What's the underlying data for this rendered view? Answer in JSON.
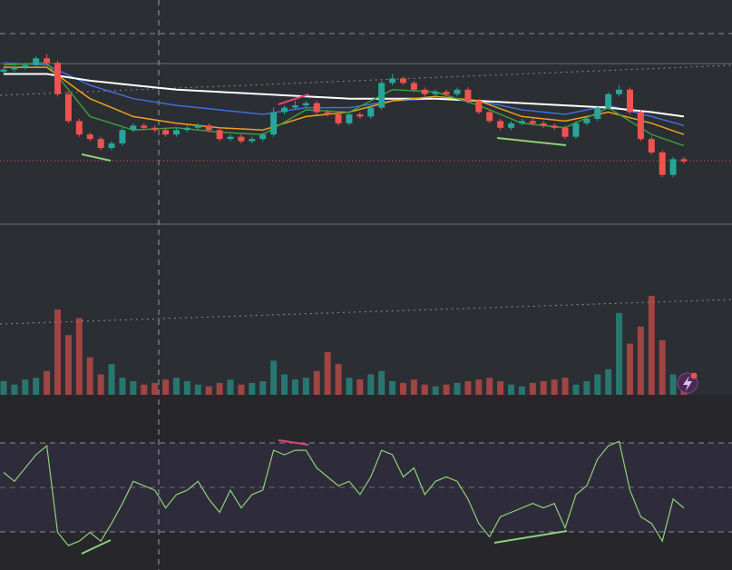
{
  "chart_data": {
    "type": "candlestick",
    "up_color": "#26a69a",
    "down_color": "#ef5350",
    "ylim": [
      0,
      100
    ],
    "open": [
      68,
      69,
      70,
      71,
      74,
      72,
      58,
      46,
      40,
      38,
      34,
      36,
      42,
      44,
      43,
      42,
      40,
      42,
      43,
      44,
      42,
      38,
      39,
      37,
      38,
      40,
      50,
      52,
      53,
      54,
      50,
      49,
      45,
      49,
      48,
      52,
      63,
      65,
      63,
      60,
      58,
      59,
      58,
      60,
      55,
      50,
      46,
      43,
      45,
      46,
      45,
      44,
      43,
      39,
      45,
      47,
      52,
      58,
      60,
      50,
      38,
      32,
      22,
      29
    ],
    "high": [
      70,
      71,
      72,
      75,
      76,
      73,
      59,
      47,
      41,
      39,
      37,
      43,
      45,
      45,
      44,
      43,
      43,
      44,
      45,
      45,
      43,
      40,
      40,
      39,
      41,
      52,
      53,
      55,
      55,
      55,
      51,
      50,
      50,
      50,
      53,
      64,
      67,
      66,
      64,
      61,
      60,
      60,
      61,
      61,
      56,
      51,
      47,
      46,
      47,
      47,
      46,
      45,
      44,
      46,
      48,
      53,
      59,
      62,
      61,
      51,
      39,
      33,
      30,
      30
    ],
    "low": [
      67,
      68,
      69,
      70,
      71,
      57,
      45,
      39,
      37,
      33,
      33,
      35,
      41,
      42,
      41,
      39,
      39,
      41,
      42,
      41,
      37,
      37,
      36,
      36,
      37,
      39,
      49,
      51,
      52,
      49,
      48,
      44,
      44,
      47,
      47,
      51,
      62,
      62,
      59,
      57,
      57,
      57,
      57,
      54,
      49,
      45,
      42,
      42,
      44,
      44,
      43,
      42,
      38,
      38,
      44,
      46,
      51,
      57,
      49,
      37,
      31,
      21,
      21,
      27
    ],
    "close": [
      69,
      70,
      71,
      74,
      72,
      58,
      46,
      40,
      38,
      34,
      36,
      42,
      44,
      43,
      42,
      40,
      42,
      43,
      44,
      42,
      38,
      39,
      37,
      38,
      40,
      50,
      52,
      53,
      54,
      50,
      49,
      45,
      49,
      48,
      52,
      63,
      65,
      63,
      60,
      58,
      59,
      58,
      60,
      55,
      50,
      46,
      43,
      45,
      46,
      45,
      44,
      43,
      39,
      45,
      47,
      52,
      58,
      60,
      50,
      38,
      32,
      22,
      29,
      28
    ],
    "ma_index": [
      0,
      4,
      8,
      12,
      16,
      20,
      24,
      28,
      32,
      36,
      40,
      44,
      48,
      52,
      56,
      60,
      63
    ],
    "moving_averages": [
      {
        "color": "#3f6fd8",
        "values": [
          72,
          71,
          62,
          56,
          53,
          51,
          49,
          52,
          52,
          55,
          56,
          55,
          51,
          49,
          53,
          48,
          44
        ]
      },
      {
        "color": "#ffffff",
        "values": [
          67,
          67,
          64,
          62,
          60,
          59,
          58,
          57,
          56,
          56,
          56,
          55,
          54,
          53,
          52,
          50,
          48
        ]
      },
      {
        "color": "#f0a020",
        "values": [
          70,
          70,
          56,
          48,
          45,
          43,
          42,
          48,
          50,
          55,
          57,
          55,
          48,
          46,
          50,
          45,
          40
        ]
      },
      {
        "color": "#3e9a3e",
        "values": [
          71,
          72,
          48,
          42,
          43,
          41,
          40,
          51,
          50,
          60,
          59,
          53,
          45,
          43,
          52,
          40,
          35
        ]
      }
    ],
    "volume": [
      8,
      6,
      9,
      10,
      14,
      50,
      35,
      45,
      22,
      12,
      18,
      10,
      8,
      6,
      7,
      9,
      10,
      8,
      6,
      5,
      7,
      9,
      6,
      7,
      8,
      20,
      12,
      9,
      10,
      14,
      25,
      18,
      10,
      9,
      12,
      14,
      8,
      7,
      9,
      6,
      5,
      6,
      7,
      8,
      9,
      10,
      8,
      6,
      5,
      7,
      8,
      9,
      10,
      6,
      8,
      12,
      15,
      48,
      30,
      40,
      58,
      32,
      12,
      10
    ],
    "volume_ylim": [
      0,
      100
    ],
    "rsi": [
      57,
      53,
      59,
      65,
      69,
      30,
      24,
      26,
      30,
      26,
      34,
      43,
      53,
      51,
      49,
      41,
      47,
      49,
      53,
      45,
      39,
      49,
      41,
      47,
      49,
      67,
      65,
      67,
      67,
      59,
      55,
      51,
      53,
      47,
      55,
      67,
      65,
      55,
      59,
      47,
      53,
      55,
      53,
      45,
      34,
      28,
      37,
      39,
      41,
      43,
      41,
      43,
      32,
      47,
      51,
      63,
      69,
      71,
      49,
      37,
      34,
      26,
      45,
      41
    ],
    "rsi_color": "#8fd07a",
    "rsi_ylim": [
      13,
      92
    ]
  }
}
